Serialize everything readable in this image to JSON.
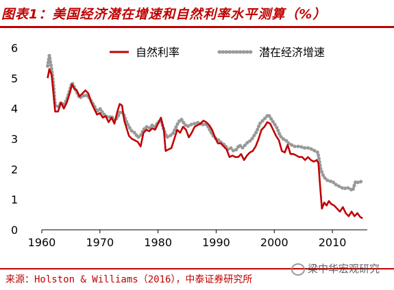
{
  "title": "图表1：美国经济潜在增速和自然利率水平测算（%）",
  "source": "来源：Holston & Williams（2016），中泰证券研究所",
  "watermark": "梁中华宏观研究",
  "colors": {
    "accent": "#c00000",
    "series_natural": "#c00000",
    "series_potential": "#999999"
  },
  "chart_data": {
    "type": "line",
    "xlim": [
      1960,
      2016
    ],
    "ylim": [
      0,
      6
    ],
    "xticks": [
      1960,
      1970,
      1980,
      1990,
      2000,
      2010
    ],
    "yticks": [
      0,
      1,
      2,
      3,
      4,
      5,
      6
    ],
    "legend_position": "top-right",
    "series": [
      {
        "name": "自然利率",
        "style": "solid",
        "color": "#c00000",
        "points": [
          [
            1961.0,
            5.0
          ],
          [
            1961.3,
            5.3
          ],
          [
            1961.7,
            5.1
          ],
          [
            1962.0,
            4.5
          ],
          [
            1962.3,
            3.9
          ],
          [
            1962.8,
            3.9
          ],
          [
            1963.3,
            4.2
          ],
          [
            1963.8,
            4.0
          ],
          [
            1964.3,
            4.2
          ],
          [
            1964.8,
            4.5
          ],
          [
            1965.2,
            4.8
          ],
          [
            1965.6,
            4.65
          ],
          [
            1966.0,
            4.6
          ],
          [
            1966.5,
            4.4
          ],
          [
            1967.0,
            4.5
          ],
          [
            1967.5,
            4.6
          ],
          [
            1968.0,
            4.5
          ],
          [
            1968.5,
            4.2
          ],
          [
            1969.0,
            4.0
          ],
          [
            1969.5,
            3.8
          ],
          [
            1970.0,
            3.85
          ],
          [
            1970.5,
            3.7
          ],
          [
            1971.0,
            3.75
          ],
          [
            1971.5,
            3.55
          ],
          [
            1972.0,
            3.7
          ],
          [
            1972.5,
            3.5
          ],
          [
            1973.0,
            3.9
          ],
          [
            1973.4,
            4.15
          ],
          [
            1973.8,
            4.1
          ],
          [
            1974.2,
            3.6
          ],
          [
            1974.6,
            3.35
          ],
          [
            1975.0,
            3.1
          ],
          [
            1975.5,
            3.0
          ],
          [
            1976.0,
            2.95
          ],
          [
            1976.5,
            2.9
          ],
          [
            1977.0,
            2.75
          ],
          [
            1977.5,
            3.2
          ],
          [
            1978.0,
            3.3
          ],
          [
            1978.5,
            3.25
          ],
          [
            1979.0,
            3.35
          ],
          [
            1979.5,
            3.3
          ],
          [
            1980.0,
            3.5
          ],
          [
            1980.5,
            3.7
          ],
          [
            1981.0,
            3.3
          ],
          [
            1981.3,
            2.6
          ],
          [
            1981.8,
            2.65
          ],
          [
            1982.3,
            2.7
          ],
          [
            1982.8,
            3.0
          ],
          [
            1983.3,
            3.3
          ],
          [
            1983.8,
            3.2
          ],
          [
            1984.3,
            3.4
          ],
          [
            1984.8,
            3.3
          ],
          [
            1985.3,
            3.05
          ],
          [
            1985.8,
            3.2
          ],
          [
            1986.3,
            3.4
          ],
          [
            1986.8,
            3.45
          ],
          [
            1987.3,
            3.5
          ],
          [
            1987.8,
            3.6
          ],
          [
            1988.3,
            3.55
          ],
          [
            1988.8,
            3.45
          ],
          [
            1989.3,
            3.3
          ],
          [
            1989.8,
            3.05
          ],
          [
            1990.3,
            2.85
          ],
          [
            1990.8,
            2.85
          ],
          [
            1991.3,
            2.75
          ],
          [
            1991.8,
            2.65
          ],
          [
            1992.3,
            2.4
          ],
          [
            1992.8,
            2.45
          ],
          [
            1993.3,
            2.4
          ],
          [
            1993.8,
            2.4
          ],
          [
            1994.3,
            2.5
          ],
          [
            1994.8,
            2.3
          ],
          [
            1995.3,
            2.45
          ],
          [
            1995.8,
            2.55
          ],
          [
            1996.3,
            2.6
          ],
          [
            1996.8,
            2.75
          ],
          [
            1997.3,
            3.0
          ],
          [
            1997.8,
            3.3
          ],
          [
            1998.3,
            3.4
          ],
          [
            1998.8,
            3.55
          ],
          [
            1999.3,
            3.5
          ],
          [
            1999.8,
            3.3
          ],
          [
            2000.3,
            3.1
          ],
          [
            2000.8,
            2.95
          ],
          [
            2001.3,
            2.6
          ],
          [
            2001.8,
            2.55
          ],
          [
            2002.3,
            2.8
          ],
          [
            2002.8,
            2.5
          ],
          [
            2003.3,
            2.5
          ],
          [
            2003.8,
            2.45
          ],
          [
            2004.3,
            2.4
          ],
          [
            2004.8,
            2.4
          ],
          [
            2005.3,
            2.3
          ],
          [
            2005.8,
            2.4
          ],
          [
            2006.3,
            2.3
          ],
          [
            2006.8,
            2.25
          ],
          [
            2007.3,
            2.3
          ],
          [
            2007.6,
            2.2
          ],
          [
            2007.9,
            1.4
          ],
          [
            2008.2,
            0.7
          ],
          [
            2008.6,
            0.9
          ],
          [
            2009.0,
            0.8
          ],
          [
            2009.4,
            0.95
          ],
          [
            2009.8,
            0.85
          ],
          [
            2010.3,
            0.8
          ],
          [
            2010.8,
            0.7
          ],
          [
            2011.3,
            0.6
          ],
          [
            2011.8,
            0.75
          ],
          [
            2012.3,
            0.55
          ],
          [
            2012.8,
            0.45
          ],
          [
            2013.3,
            0.6
          ],
          [
            2013.8,
            0.45
          ],
          [
            2014.3,
            0.55
          ],
          [
            2014.8,
            0.42
          ],
          [
            2015.2,
            0.38
          ]
        ]
      },
      {
        "name": "潜在经济增速",
        "style": "dotted",
        "color": "#999999",
        "points": [
          [
            1961.0,
            5.4
          ],
          [
            1961.3,
            5.75
          ],
          [
            1961.7,
            5.3
          ],
          [
            1962.0,
            4.8
          ],
          [
            1962.3,
            4.1
          ],
          [
            1962.8,
            4.05
          ],
          [
            1963.3,
            4.2
          ],
          [
            1963.8,
            4.1
          ],
          [
            1964.3,
            4.3
          ],
          [
            1964.8,
            4.6
          ],
          [
            1965.2,
            4.85
          ],
          [
            1965.6,
            4.7
          ],
          [
            1966.0,
            4.55
          ],
          [
            1966.5,
            4.35
          ],
          [
            1967.0,
            4.4
          ],
          [
            1967.5,
            4.45
          ],
          [
            1968.0,
            4.4
          ],
          [
            1968.5,
            4.25
          ],
          [
            1969.0,
            4.1
          ],
          [
            1969.5,
            3.9
          ],
          [
            1970.0,
            4.0
          ],
          [
            1970.5,
            3.85
          ],
          [
            1971.0,
            3.75
          ],
          [
            1971.5,
            3.7
          ],
          [
            1972.0,
            3.75
          ],
          [
            1972.5,
            3.6
          ],
          [
            1973.0,
            3.7
          ],
          [
            1973.5,
            3.9
          ],
          [
            1974.0,
            3.85
          ],
          [
            1974.5,
            3.6
          ],
          [
            1975.0,
            3.4
          ],
          [
            1975.5,
            3.25
          ],
          [
            1976.0,
            3.2
          ],
          [
            1976.5,
            3.05
          ],
          [
            1977.0,
            3.1
          ],
          [
            1977.5,
            3.3
          ],
          [
            1978.0,
            3.4
          ],
          [
            1978.5,
            3.35
          ],
          [
            1979.0,
            3.45
          ],
          [
            1979.5,
            3.4
          ],
          [
            1980.0,
            3.55
          ],
          [
            1980.5,
            3.6
          ],
          [
            1981.0,
            3.3
          ],
          [
            1981.5,
            3.05
          ],
          [
            1982.0,
            3.1
          ],
          [
            1982.5,
            3.15
          ],
          [
            1983.0,
            3.35
          ],
          [
            1983.5,
            3.55
          ],
          [
            1984.0,
            3.65
          ],
          [
            1984.5,
            3.5
          ],
          [
            1985.0,
            3.4
          ],
          [
            1985.5,
            3.45
          ],
          [
            1986.0,
            3.5
          ],
          [
            1986.5,
            3.5
          ],
          [
            1987.0,
            3.55
          ],
          [
            1987.5,
            3.45
          ],
          [
            1988.0,
            3.5
          ],
          [
            1988.5,
            3.45
          ],
          [
            1989.0,
            3.25
          ],
          [
            1989.5,
            3.1
          ],
          [
            1990.0,
            3.0
          ],
          [
            1990.5,
            2.95
          ],
          [
            1991.0,
            2.85
          ],
          [
            1991.5,
            2.8
          ],
          [
            1992.0,
            2.65
          ],
          [
            1992.5,
            2.7
          ],
          [
            1993.0,
            2.6
          ],
          [
            1993.5,
            2.65
          ],
          [
            1994.0,
            2.8
          ],
          [
            1994.5,
            2.7
          ],
          [
            1995.0,
            2.8
          ],
          [
            1995.5,
            2.9
          ],
          [
            1996.0,
            2.95
          ],
          [
            1996.5,
            3.1
          ],
          [
            1997.0,
            3.25
          ],
          [
            1997.5,
            3.5
          ],
          [
            1998.0,
            3.6
          ],
          [
            1998.5,
            3.7
          ],
          [
            1999.0,
            3.8
          ],
          [
            1999.5,
            3.65
          ],
          [
            2000.0,
            3.5
          ],
          [
            2000.5,
            3.35
          ],
          [
            2001.0,
            3.1
          ],
          [
            2001.5,
            3.0
          ],
          [
            2002.0,
            2.95
          ],
          [
            2002.5,
            2.85
          ],
          [
            2003.0,
            2.8
          ],
          [
            2003.5,
            2.75
          ],
          [
            2004.0,
            2.75
          ],
          [
            2004.5,
            2.75
          ],
          [
            2005.0,
            2.7
          ],
          [
            2005.5,
            2.7
          ],
          [
            2006.0,
            2.7
          ],
          [
            2006.5,
            2.65
          ],
          [
            2007.0,
            2.6
          ],
          [
            2007.5,
            2.55
          ],
          [
            2008.0,
            2.0
          ],
          [
            2008.5,
            1.75
          ],
          [
            2009.0,
            1.65
          ],
          [
            2009.5,
            1.6
          ],
          [
            2010.0,
            1.6
          ],
          [
            2010.5,
            1.5
          ],
          [
            2011.0,
            1.45
          ],
          [
            2011.5,
            1.4
          ],
          [
            2012.0,
            1.35
          ],
          [
            2012.5,
            1.4
          ],
          [
            2013.0,
            1.35
          ],
          [
            2013.5,
            1.3
          ],
          [
            2014.0,
            1.6
          ],
          [
            2014.5,
            1.55
          ],
          [
            2015.0,
            1.6
          ]
        ]
      }
    ]
  }
}
